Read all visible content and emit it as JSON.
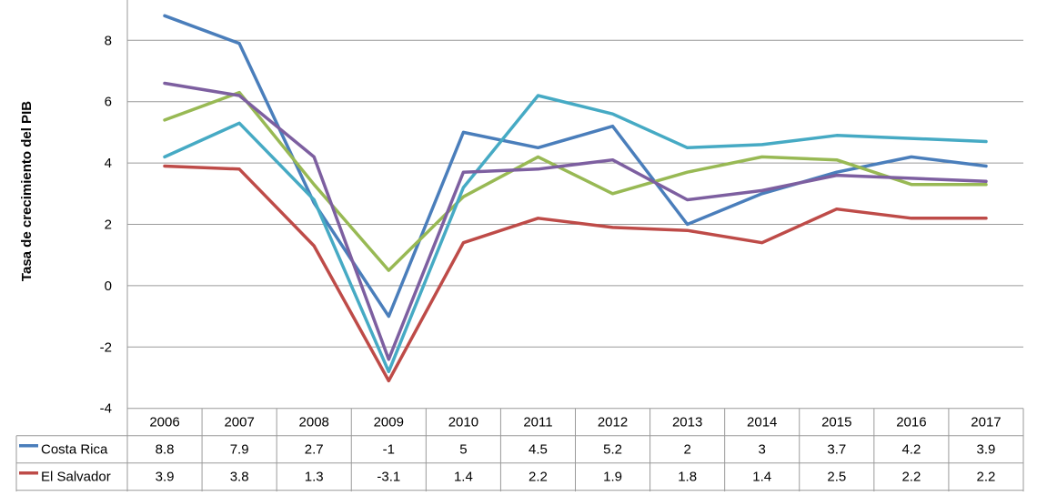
{
  "chart_data": {
    "type": "line",
    "ylabel": "Tasa de crecimiento del PIB",
    "ylim": [
      -4,
      9
    ],
    "y_ticks": [
      "-4",
      "-2",
      "0",
      "2",
      "4",
      "6",
      "8"
    ],
    "grid": true,
    "legend": "data-table",
    "categories": [
      "2006",
      "2007",
      "2008",
      "2009",
      "2010",
      "2011",
      "2012",
      "2013",
      "2014",
      "2015",
      "2016",
      "2017"
    ],
    "series": [
      {
        "name": "Costa Rica",
        "color": "#4A7EBB",
        "show_in_table": true,
        "labels": [
          "8.8",
          "7.9",
          "2.7",
          "-1",
          "5",
          "4.5",
          "5.2",
          "2",
          "3",
          "3.7",
          "4.2",
          "3.9"
        ],
        "values": [
          8.8,
          7.9,
          2.7,
          -1,
          5,
          4.5,
          5.2,
          2,
          3,
          3.7,
          4.2,
          3.9
        ]
      },
      {
        "name": "El Salvador",
        "color": "#BE4B48",
        "show_in_table": true,
        "labels": [
          "3.9",
          "3.8",
          "1.3",
          "-3.1",
          "1.4",
          "2.2",
          "1.9",
          "1.8",
          "1.4",
          "2.5",
          "2.2",
          "2.2"
        ],
        "values": [
          3.9,
          3.8,
          1.3,
          -3.1,
          1.4,
          2.2,
          1.9,
          1.8,
          1.4,
          2.5,
          2.2,
          2.2
        ]
      },
      {
        "color": "#98B954",
        "show_in_table": false,
        "values": [
          5.4,
          6.3,
          3.3,
          0.5,
          2.9,
          4.2,
          3.0,
          3.7,
          4.2,
          4.1,
          3.3,
          3.3
        ]
      },
      {
        "color": "#46AAC4",
        "show_in_table": false,
        "values": [
          4.2,
          5.3,
          2.8,
          -2.8,
          3.2,
          6.2,
          5.6,
          4.5,
          4.6,
          4.9,
          4.8,
          4.7
        ]
      },
      {
        "color": "#7D5FA0",
        "show_in_table": false,
        "values": [
          6.6,
          6.2,
          4.2,
          -2.4,
          3.7,
          3.8,
          4.1,
          2.8,
          3.1,
          3.6,
          3.5,
          3.4
        ]
      }
    ]
  }
}
